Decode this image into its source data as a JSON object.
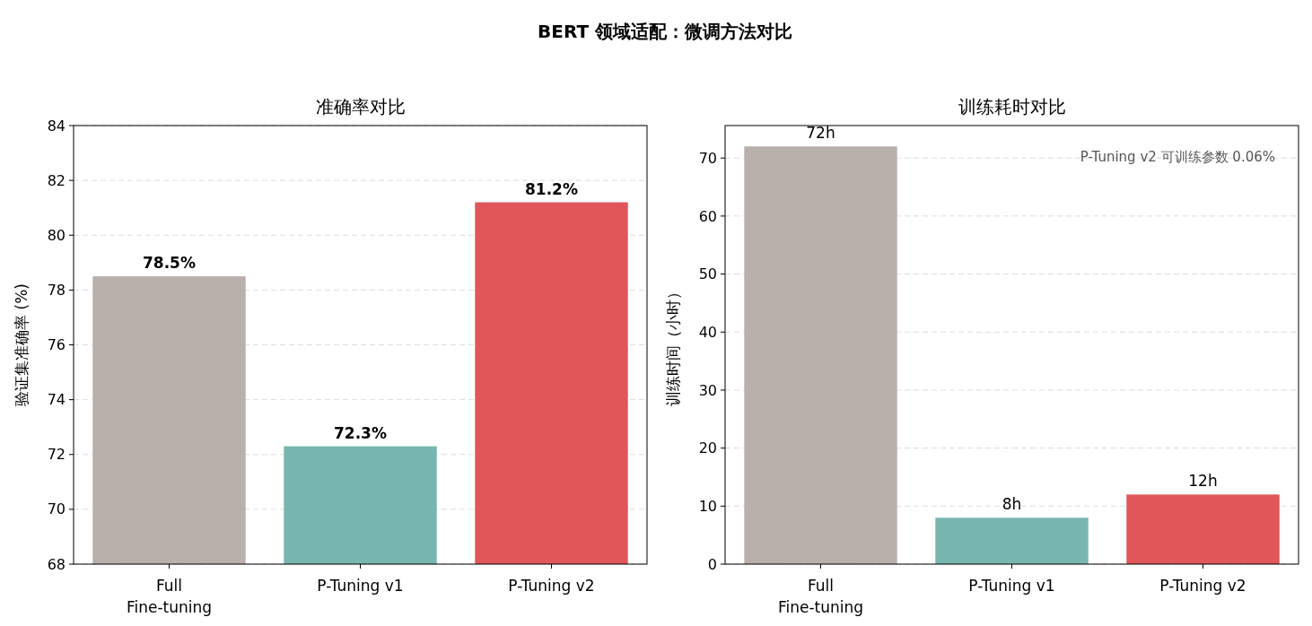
{
  "chart_data": [
    {
      "type": "bar",
      "title": "准确率对比",
      "annotations": [
        "BERT 领域适配：微调方法对比"
      ],
      "ylabel": "验证集准确率 (%)",
      "categories": [
        "Full\nFine-tuning",
        "P-Tuning v1",
        "P-Tuning v2"
      ],
      "values": [
        78.5,
        72.3,
        81.2
      ],
      "colors": [
        "#b9afab",
        "#78b6b0",
        "#e05659"
      ],
      "value_labels": [
        "78.5%",
        "72.3%",
        "81.2%"
      ],
      "ylim": [
        68,
        84
      ],
      "yticks": [
        68,
        70,
        72,
        74,
        76,
        78,
        80,
        82,
        84
      ],
      "grid": "y"
    },
    {
      "type": "bar",
      "title": "训练耗时对比",
      "ylabel": "训练时间（小时）",
      "categories": [
        "Full\nFine-tuning",
        "P-Tuning v1",
        "P-Tuning v2"
      ],
      "values": [
        72,
        8,
        12
      ],
      "colors": [
        "#b9afab",
        "#78b6b0",
        "#e05659"
      ],
      "value_labels": [
        "72h",
        "8h",
        "12h"
      ],
      "ylim": [
        0,
        75.6
      ],
      "yticks": [
        0,
        10,
        20,
        30,
        40,
        50,
        60,
        70
      ],
      "grid": "y",
      "annotations": [
        "P-Tuning v2 可训练参数 0.06%"
      ]
    }
  ]
}
